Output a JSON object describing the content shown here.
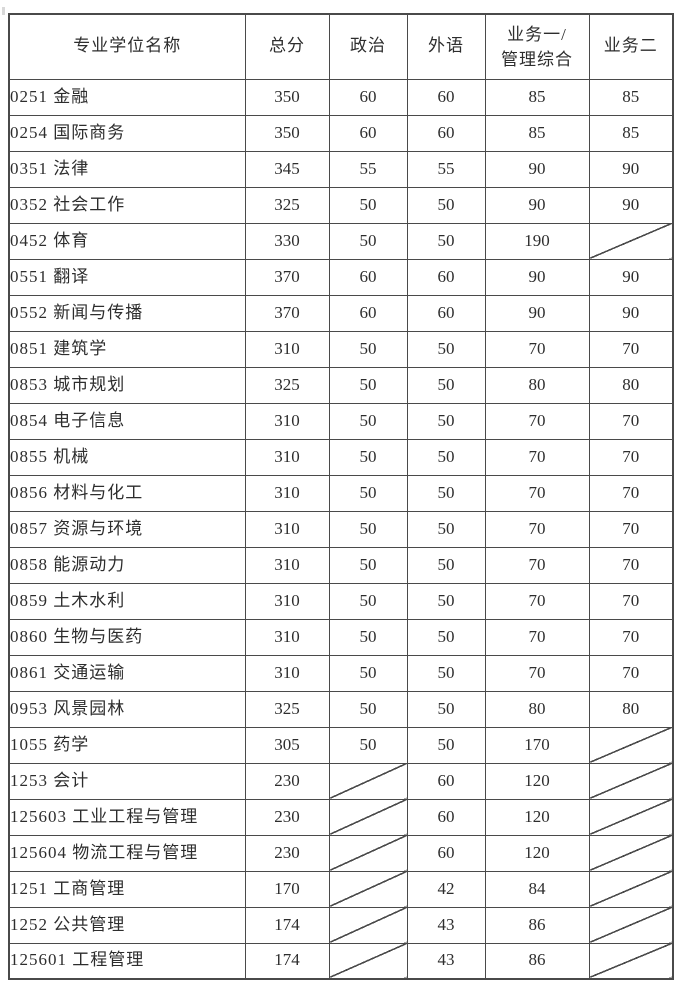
{
  "page": {
    "background_color": "#ffffff",
    "text_color": "#2d2d2d",
    "border_color": "#4a4a4a"
  },
  "table": {
    "headers": {
      "name": "专业学位名称",
      "total": "总分",
      "politics": "政治",
      "foreign_language": "外语",
      "business1_line1": "业务一/",
      "business1_line2": "管理综合",
      "business2": "业务二"
    },
    "na_style": "diagonal-slash",
    "rows": [
      [
        "0251 金融",
        "350",
        "60",
        "60",
        "85",
        "85"
      ],
      [
        "0254 国际商务",
        "350",
        "60",
        "60",
        "85",
        "85"
      ],
      [
        "0351 法律",
        "345",
        "55",
        "55",
        "90",
        "90"
      ],
      [
        "0352 社会工作",
        "325",
        "50",
        "50",
        "90",
        "90"
      ],
      [
        "0452 体育",
        "330",
        "50",
        "50",
        "190",
        null
      ],
      [
        "0551 翻译",
        "370",
        "60",
        "60",
        "90",
        "90"
      ],
      [
        "0552 新闻与传播",
        "370",
        "60",
        "60",
        "90",
        "90"
      ],
      [
        "0851 建筑学",
        "310",
        "50",
        "50",
        "70",
        "70"
      ],
      [
        "0853 城市规划",
        "325",
        "50",
        "50",
        "80",
        "80"
      ],
      [
        "0854 电子信息",
        "310",
        "50",
        "50",
        "70",
        "70"
      ],
      [
        "0855 机械",
        "310",
        "50",
        "50",
        "70",
        "70"
      ],
      [
        "0856 材料与化工",
        "310",
        "50",
        "50",
        "70",
        "70"
      ],
      [
        "0857 资源与环境",
        "310",
        "50",
        "50",
        "70",
        "70"
      ],
      [
        "0858 能源动力",
        "310",
        "50",
        "50",
        "70",
        "70"
      ],
      [
        "0859 土木水利",
        "310",
        "50",
        "50",
        "70",
        "70"
      ],
      [
        "0860 生物与医药",
        "310",
        "50",
        "50",
        "70",
        "70"
      ],
      [
        "0861 交通运输",
        "310",
        "50",
        "50",
        "70",
        "70"
      ],
      [
        "0953 风景园林",
        "325",
        "50",
        "50",
        "80",
        "80"
      ],
      [
        "1055 药学",
        "305",
        "50",
        "50",
        "170",
        null
      ],
      [
        "1253 会计",
        "230",
        null,
        "60",
        "120",
        null
      ],
      [
        "125603 工业工程与管理",
        "230",
        null,
        "60",
        "120",
        null
      ],
      [
        "125604 物流工程与管理",
        "230",
        null,
        "60",
        "120",
        null
      ],
      [
        "1251 工商管理",
        "170",
        null,
        "42",
        "84",
        null
      ],
      [
        "1252 公共管理",
        "174",
        null,
        "43",
        "86",
        null
      ],
      [
        "125601 工程管理",
        "174",
        null,
        "43",
        "86",
        null
      ]
    ]
  }
}
